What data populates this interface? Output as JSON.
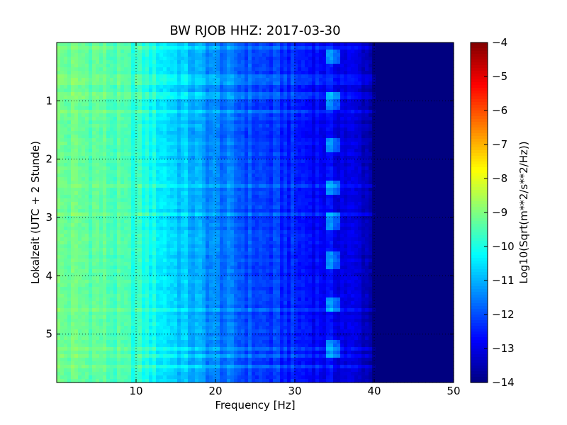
{
  "chart_data": {
    "type": "heatmap",
    "title": "BW RJOB HHZ: 2017-03-30",
    "xlabel": "Frequency [Hz]",
    "ylabel": "Lokalzeit (UTC + 2 Stunde)",
    "xlim": [
      0,
      50
    ],
    "ylim": [
      0,
      5.83
    ],
    "y_inverted": true,
    "grid": true,
    "x_ticks": [
      10,
      20,
      30,
      40,
      50
    ],
    "x_tick_labels": [
      "10",
      "20",
      "30",
      "40",
      "50"
    ],
    "y_ticks": [
      1,
      2,
      3,
      4,
      5
    ],
    "y_tick_labels": [
      "1",
      "2",
      "3",
      "4",
      "5"
    ],
    "colorbar": {
      "label": "Log10(Sqrt(m**2/s**2/Hz))",
      "colormap": "jet",
      "range": [
        -14,
        -4
      ],
      "ticks": [
        -4,
        -5,
        -6,
        -7,
        -8,
        -9,
        -10,
        -11,
        -12,
        -13,
        -14
      ],
      "tick_labels": [
        "−4",
        "−5",
        "−6",
        "−7",
        "−8",
        "−9",
        "−10",
        "−11",
        "−12",
        "−13",
        "−14"
      ]
    },
    "frequency_profile": {
      "frequency_hz": [
        0,
        5,
        10,
        15,
        20,
        25,
        30,
        35,
        39,
        40,
        42,
        50
      ],
      "level": [
        -9.2,
        -9.3,
        -9.8,
        -10.7,
        -11.5,
        -12.1,
        -12.5,
        -12.9,
        -13.3,
        -14.0,
        -14.0,
        -14.0
      ]
    },
    "features": {
      "spike_line_hz": [
        34.3,
        34.6,
        34.9,
        35.2
      ],
      "spike_times_h": [
        0.25,
        1.0,
        1.75,
        2.5,
        3.05,
        3.75,
        4.5,
        5.25
      ]
    }
  }
}
